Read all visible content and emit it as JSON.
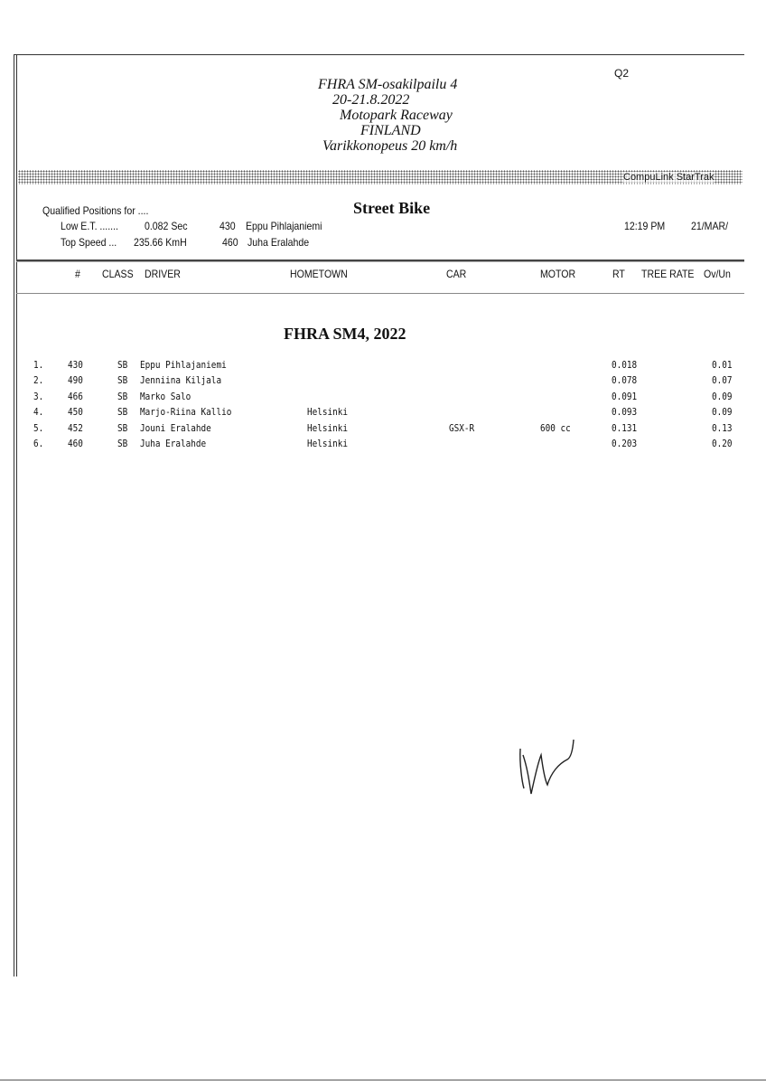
{
  "header": {
    "qualifier": "Q2",
    "event_lines": [
      "FHRA SM-osakilpailu 4",
      "20-21.8.2022",
      "Motopark Raceway",
      "FINLAND",
      "Varikkonopeus 20 km/h"
    ],
    "banner_brand": "CompuLink StarTrak"
  },
  "summary": {
    "qualified_label": "Qualified Positions for ....",
    "class_title": "Street Bike",
    "low_et_label": "Low E.T. .......",
    "low_et_value": "0.082 Sec",
    "low_et_number": "430",
    "low_et_driver": "Eppu Pihlajaniemi",
    "top_speed_label": "Top Speed ...",
    "top_speed_value": "235.66 KmH",
    "top_speed_number": "460",
    "top_speed_driver": "Juha Eralahde",
    "time": "12:19 PM",
    "date": "21/MAR/"
  },
  "columns": {
    "num": "#",
    "class": "CLASS",
    "driver": "DRIVER",
    "hometown": "HOMETOWN",
    "car": "CAR",
    "motor": "MOTOR",
    "rt": "RT",
    "tree_rate": "TREE RATE",
    "ovun": "Ov/Un"
  },
  "section_title": "FHRA SM4, 2022",
  "rows": [
    {
      "pos": "1.",
      "num": "430",
      "class": "SB",
      "driver": "Eppu Pihlajaniemi",
      "hometown": "",
      "car": "",
      "motor": "",
      "rt": "0.018",
      "ovun": "0.01"
    },
    {
      "pos": "2.",
      "num": "490",
      "class": "SB",
      "driver": "Jenniina Kiljala",
      "hometown": "",
      "car": "",
      "motor": "",
      "rt": "0.078",
      "ovun": "0.07"
    },
    {
      "pos": "3.",
      "num": "466",
      "class": "SB",
      "driver": "Marko Salo",
      "hometown": "",
      "car": "",
      "motor": "",
      "rt": "0.091",
      "ovun": "0.09"
    },
    {
      "pos": "4.",
      "num": "450",
      "class": "SB",
      "driver": "Marjo-Riina Kallio",
      "hometown": "Helsinki",
      "car": "",
      "motor": "",
      "rt": "0.093",
      "ovun": "0.09"
    },
    {
      "pos": "5.",
      "num": "452",
      "class": "SB",
      "driver": "Jouni Eralahde",
      "hometown": "Helsinki",
      "car": "GSX-R",
      "motor": "600 cc",
      "rt": "0.131",
      "ovun": "0.13"
    },
    {
      "pos": "6.",
      "num": "460",
      "class": "SB",
      "driver": "Juha Eralahde",
      "hometown": "Helsinki",
      "car": "",
      "motor": "",
      "rt": "0.203",
      "ovun": "0.20"
    }
  ]
}
